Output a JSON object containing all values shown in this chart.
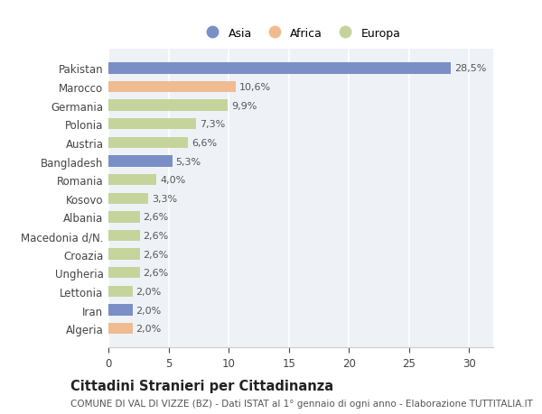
{
  "categories": [
    "Pakistan",
    "Marocco",
    "Germania",
    "Polonia",
    "Austria",
    "Bangladesh",
    "Romania",
    "Kosovo",
    "Albania",
    "Macedonia d/N.",
    "Croazia",
    "Ungheria",
    "Lettonia",
    "Iran",
    "Algeria"
  ],
  "values": [
    28.5,
    10.6,
    9.9,
    7.3,
    6.6,
    5.3,
    4.0,
    3.3,
    2.6,
    2.6,
    2.6,
    2.6,
    2.0,
    2.0,
    2.0
  ],
  "labels": [
    "28,5%",
    "10,6%",
    "9,9%",
    "7,3%",
    "6,6%",
    "5,3%",
    "4,0%",
    "3,3%",
    "2,6%",
    "2,6%",
    "2,6%",
    "2,6%",
    "2,0%",
    "2,0%",
    "2,0%"
  ],
  "continents": [
    "Asia",
    "Africa",
    "Europa",
    "Europa",
    "Europa",
    "Asia",
    "Europa",
    "Europa",
    "Europa",
    "Europa",
    "Europa",
    "Europa",
    "Europa",
    "Asia",
    "Africa"
  ],
  "colors": {
    "Asia": "#7b8fc7",
    "Africa": "#f0bb91",
    "Europa": "#c5d49a"
  },
  "legend_labels": [
    "Asia",
    "Africa",
    "Europa"
  ],
  "xlim": [
    0,
    32
  ],
  "xticks": [
    0,
    5,
    10,
    15,
    20,
    25,
    30
  ],
  "title": "Cittadini Stranieri per Cittadinanza",
  "subtitle": "COMUNE DI VAL DI VIZZE (BZ) - Dati ISTAT al 1° gennaio di ogni anno - Elaborazione TUTTITALIA.IT",
  "background_color": "#ffffff",
  "plot_bg_color": "#eef2f7",
  "grid_color": "#ffffff",
  "label_fontsize": 8,
  "ytick_fontsize": 8.5,
  "xtick_fontsize": 8.5,
  "title_fontsize": 10.5,
  "subtitle_fontsize": 7.5,
  "bar_height": 0.6
}
